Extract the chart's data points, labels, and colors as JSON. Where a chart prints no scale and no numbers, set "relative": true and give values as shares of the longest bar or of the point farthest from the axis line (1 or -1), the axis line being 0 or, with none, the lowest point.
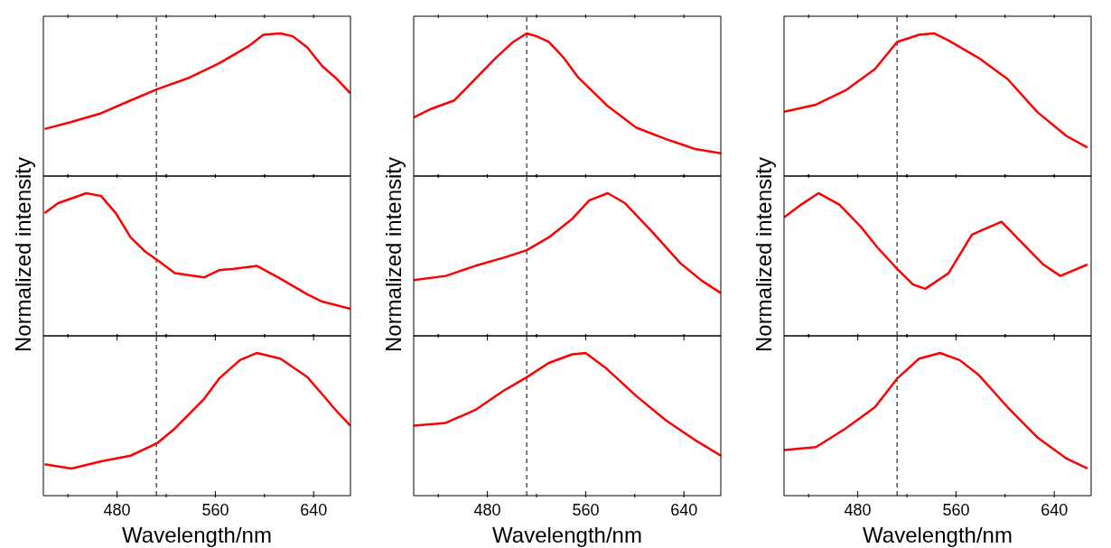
{
  "chart_data": [
    {
      "type": "line",
      "relative": true,
      "color": "#ff0000",
      "line_style": "solid",
      "tick_labels": false,
      "xlim": [
        420,
        670
      ],
      "xticks": [
        {
          "value": 440,
          "label": null
        },
        {
          "value": 480,
          "label": null
        },
        {
          "value": 520,
          "label": null
        },
        {
          "value": 560,
          "label": null
        },
        {
          "value": 600,
          "label": null
        },
        {
          "value": 640,
          "label": null
        }
      ],
      "ref_lines": [
        {
          "axis": "x",
          "value": 512,
          "color": "#000000",
          "line_style": "dashed"
        }
      ],
      "x": [
        421,
        443,
        467,
        491,
        513,
        539,
        563,
        587,
        599,
        613,
        623,
        635,
        647,
        659,
        670
      ],
      "values": [
        0.33,
        0.38,
        0.44,
        0.53,
        0.61,
        0.69,
        0.79,
        0.91,
        0.99,
        1.0,
        0.98,
        0.9,
        0.77,
        0.68,
        0.58
      ]
    },
    {
      "type": "line",
      "relative": true,
      "color": "#ff0000",
      "line_style": "solid",
      "tick_labels": false,
      "xlim": [
        420,
        670
      ],
      "xticks": [
        {
          "value": 440,
          "label": null
        },
        {
          "value": 480,
          "label": null
        },
        {
          "value": 520,
          "label": null
        },
        {
          "value": 560,
          "label": null
        },
        {
          "value": 600,
          "label": null
        },
        {
          "value": 640,
          "label": null
        }
      ],
      "ref_lines": [
        {
          "axis": "x",
          "value": 512,
          "color": "#000000",
          "line_style": "dashed"
        }
      ],
      "x": [
        420,
        434,
        453,
        470,
        487,
        501,
        512,
        520,
        530,
        542,
        554,
        578,
        601,
        625,
        649,
        670
      ],
      "values": [
        0.41,
        0.47,
        0.53,
        0.68,
        0.83,
        0.94,
        1.0,
        0.98,
        0.94,
        0.83,
        0.69,
        0.49,
        0.34,
        0.26,
        0.19,
        0.16
      ]
    },
    {
      "type": "line",
      "relative": true,
      "color": "#ff0000",
      "line_style": "solid",
      "tick_labels": false,
      "xlim": [
        420,
        670
      ],
      "xticks": [
        {
          "value": 440,
          "label": null
        },
        {
          "value": 480,
          "label": null
        },
        {
          "value": 520,
          "label": null
        },
        {
          "value": 560,
          "label": null
        },
        {
          "value": 600,
          "label": null
        },
        {
          "value": 640,
          "label": null
        }
      ],
      "ref_lines": [
        {
          "axis": "x",
          "value": 512,
          "color": "#000000",
          "line_style": "dashed"
        }
      ],
      "x": [
        420,
        446,
        470,
        494,
        512,
        530,
        542,
        554,
        578,
        602,
        626,
        650,
        667
      ],
      "values": [
        0.45,
        0.5,
        0.6,
        0.75,
        0.94,
        0.99,
        1.0,
        0.95,
        0.83,
        0.68,
        0.45,
        0.28,
        0.2
      ]
    },
    {
      "type": "line",
      "relative": true,
      "ylabel": "Normalized intensity",
      "color": "#ff0000",
      "line_style": "solid",
      "tick_labels": false,
      "xlim": [
        420,
        670
      ],
      "xticks": [
        {
          "value": 440,
          "label": null
        },
        {
          "value": 480,
          "label": null
        },
        {
          "value": 520,
          "label": null
        },
        {
          "value": 560,
          "label": null
        },
        {
          "value": 600,
          "label": null
        },
        {
          "value": 640,
          "label": null
        }
      ],
      "ref_lines": [
        {
          "axis": "x",
          "value": 512,
          "color": "#000000",
          "line_style": "dashed"
        }
      ],
      "x": [
        421,
        432,
        455,
        467,
        479,
        491,
        503,
        513,
        527,
        551,
        563,
        575,
        594,
        611,
        635,
        647,
        670
      ],
      "values": [
        0.86,
        0.93,
        1.0,
        0.98,
        0.86,
        0.69,
        0.59,
        0.53,
        0.44,
        0.41,
        0.46,
        0.47,
        0.49,
        0.41,
        0.29,
        0.24,
        0.19
      ]
    },
    {
      "type": "line",
      "relative": true,
      "ylabel": "Normalized intensity",
      "color": "#ff0000",
      "line_style": "solid",
      "tick_labels": false,
      "xlim": [
        420,
        670
      ],
      "xticks": [
        {
          "value": 440,
          "label": null
        },
        {
          "value": 480,
          "label": null
        },
        {
          "value": 520,
          "label": null
        },
        {
          "value": 560,
          "label": null
        },
        {
          "value": 600,
          "label": null
        },
        {
          "value": 640,
          "label": null
        }
      ],
      "ref_lines": [
        {
          "axis": "x",
          "value": 512,
          "color": "#000000",
          "line_style": "dashed"
        }
      ],
      "x": [
        420,
        446,
        470,
        494,
        512,
        530,
        549,
        563,
        578,
        592,
        613,
        637,
        654,
        670
      ],
      "values": [
        0.39,
        0.42,
        0.49,
        0.55,
        0.6,
        0.69,
        0.82,
        0.95,
        1.0,
        0.93,
        0.74,
        0.51,
        0.39,
        0.3
      ]
    },
    {
      "type": "line",
      "relative": true,
      "ylabel": "Normalized intensity",
      "color": "#ff0000",
      "line_style": "solid",
      "tick_labels": false,
      "xlim": [
        420,
        670
      ],
      "xticks": [
        {
          "value": 440,
          "label": null
        },
        {
          "value": 480,
          "label": null
        },
        {
          "value": 520,
          "label": null
        },
        {
          "value": 560,
          "label": null
        },
        {
          "value": 600,
          "label": null
        },
        {
          "value": 640,
          "label": null
        }
      ],
      "ref_lines": [
        {
          "axis": "x",
          "value": 512,
          "color": "#000000",
          "line_style": "dashed"
        }
      ],
      "x": [
        420,
        434,
        448,
        465,
        482,
        496,
        512,
        525,
        535,
        554,
        573,
        597,
        614,
        631,
        645,
        667
      ],
      "values": [
        0.83,
        0.92,
        1.0,
        0.92,
        0.77,
        0.62,
        0.47,
        0.36,
        0.33,
        0.44,
        0.71,
        0.8,
        0.65,
        0.5,
        0.42,
        0.5
      ]
    },
    {
      "type": "line",
      "relative": true,
      "xlabel": "Wavelength/nm",
      "color": "#ff0000",
      "line_style": "solid",
      "tick_labels": "x",
      "xlim": [
        420,
        670
      ],
      "xticks": [
        {
          "value": 440,
          "label": null
        },
        480,
        {
          "value": 520,
          "label": null
        },
        560,
        {
          "value": 600,
          "label": null
        },
        640
      ],
      "ref_lines": [
        {
          "axis": "x",
          "value": 512,
          "color": "#000000",
          "line_style": "dashed"
        }
      ],
      "x": [
        421,
        443,
        467,
        491,
        513,
        527,
        551,
        563,
        580,
        594,
        613,
        635,
        647,
        659,
        670
      ],
      "values": [
        0.22,
        0.19,
        0.24,
        0.28,
        0.37,
        0.47,
        0.68,
        0.82,
        0.95,
        1.0,
        0.96,
        0.83,
        0.71,
        0.59,
        0.49
      ]
    },
    {
      "type": "line",
      "relative": true,
      "xlabel": "Wavelength/nm",
      "color": "#ff0000",
      "line_style": "solid",
      "tick_labels": "x",
      "xlim": [
        420,
        670
      ],
      "xticks": [
        {
          "value": 440,
          "label": null
        },
        480,
        {
          "value": 520,
          "label": null
        },
        560,
        {
          "value": 600,
          "label": null
        },
        640
      ],
      "ref_lines": [
        {
          "axis": "x",
          "value": 512,
          "color": "#000000",
          "line_style": "dashed"
        }
      ],
      "x": [
        420,
        446,
        470,
        494,
        512,
        530,
        549,
        560,
        577,
        601,
        625,
        649,
        670
      ],
      "values": [
        0.49,
        0.51,
        0.6,
        0.74,
        0.83,
        0.93,
        0.99,
        1.0,
        0.89,
        0.7,
        0.53,
        0.39,
        0.28
      ]
    },
    {
      "type": "line",
      "relative": true,
      "xlabel": "Wavelength/nm",
      "color": "#ff0000",
      "line_style": "solid",
      "tick_labels": "x",
      "xlim": [
        420,
        670
      ],
      "xticks": [
        {
          "value": 440,
          "label": null
        },
        480,
        {
          "value": 520,
          "label": null
        },
        560,
        {
          "value": 600,
          "label": null
        },
        640
      ],
      "ref_lines": [
        {
          "axis": "x",
          "value": 512,
          "color": "#000000",
          "line_style": "dashed"
        }
      ],
      "x": [
        420,
        446,
        470,
        494,
        512,
        530,
        547,
        563,
        578,
        602,
        626,
        650,
        667
      ],
      "values": [
        0.32,
        0.34,
        0.47,
        0.62,
        0.82,
        0.96,
        1.0,
        0.95,
        0.85,
        0.62,
        0.41,
        0.26,
        0.19
      ]
    }
  ]
}
